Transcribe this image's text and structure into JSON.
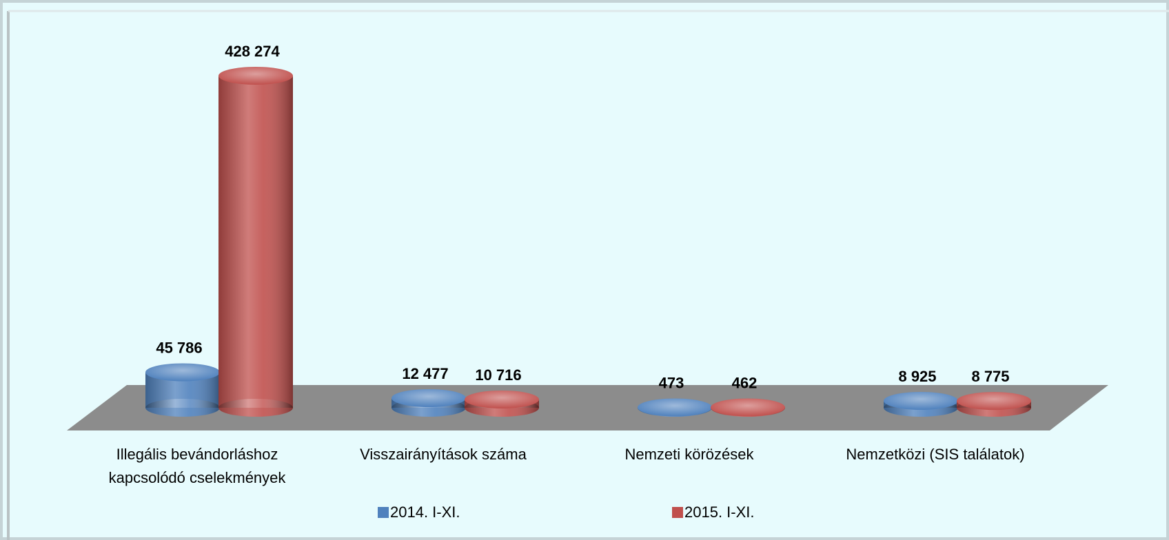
{
  "chart_data": {
    "type": "bar3d",
    "categories": [
      "Illegális bevándorláshoz kapcsolódó cselekmények",
      "Visszairányítások száma",
      "Nemzeti körözések",
      "Nemzetközi (SIS találatok)"
    ],
    "series": [
      {
        "name": "2014. I-XI.",
        "color": "#4f81bd",
        "values": [
          45786,
          12477,
          473,
          8925
        ],
        "value_labels": [
          "45 786",
          "12 477",
          "473",
          "8 925"
        ]
      },
      {
        "name": "2015. I-XI.",
        "color": "#c0504d",
        "values": [
          428274,
          10716,
          462,
          8775
        ],
        "value_labels": [
          "428 274",
          "10 716",
          "462",
          "8 775"
        ]
      }
    ],
    "legend": "bottom"
  }
}
